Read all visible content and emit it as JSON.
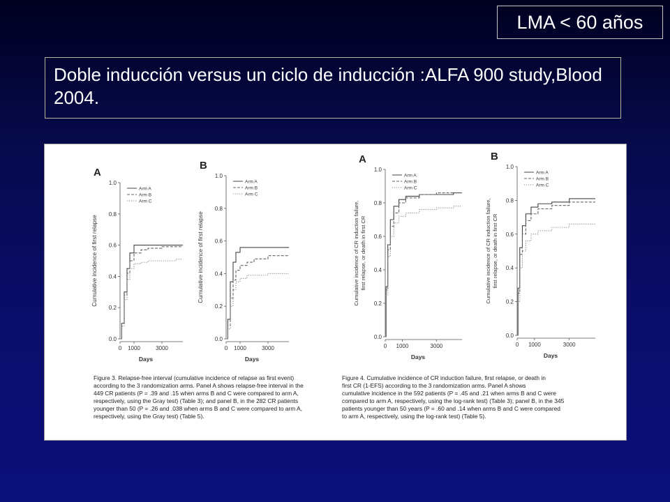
{
  "header": {
    "tag": "LMA < 60 años",
    "title": "Doble inducción versus un ciclo de inducción :ALFA 900 study,Blood 2004."
  },
  "figure3": {
    "caption_lines": [
      "Figure 3. Relapse-free interval (cumulative incidence of relapse as first event)",
      "according to the 3 randomization arms. Panel A shows relapse-free interval in the",
      "449 CR patients (P = .39 and .15 when arms B and C were compared to arm A,",
      "respectively, using the Gray test) (Table 3); and panel B, in the 282 CR patients",
      "younger than 50 (P = .26 and .038 when arms B and C were compared to arm A,",
      "respectively, using the Gray test) (Table 5)."
    ]
  },
  "figure4": {
    "caption_lines": [
      "Figure 4. Cumulative incidence of CR induction failure, first relapse, or death in",
      "first CR (1-EFS) according to the 3 randomization arms. Panel A shows",
      "cumulative incidence in the 592 patients (P = .45 and .21 when arms B and C were",
      "compared to arm A, respectively, using the log-rank test) (Table 3); panel B, in the 345",
      "patients younger than 50 years (P = .60 and .14 when arms B and C were compared",
      "to arm A, respectively, using the log-rank test) (Table 5)."
    ]
  },
  "chart_data": [
    {
      "type": "line",
      "panel_label": "A",
      "ylabel": "Cumulative incidence of first relapse",
      "xlabel": "Days",
      "xlim": [
        0,
        4500
      ],
      "ylim": [
        0,
        1.0
      ],
      "xticks": [
        0,
        1000,
        3000
      ],
      "yticks": [
        0.0,
        0.2,
        0.4,
        0.6,
        0.8,
        1.0
      ],
      "ytick_labels": [
        "0.0",
        "0.2",
        "0.4",
        "0.6",
        "0.8",
        "1.0"
      ],
      "series": [
        {
          "name": "Arm A",
          "style": "solid",
          "x": [
            0,
            120,
            300,
            500,
            700,
            1000,
            1500,
            2000,
            3000,
            4000
          ],
          "y": [
            0,
            0.1,
            0.3,
            0.45,
            0.55,
            0.6,
            0.6,
            0.6,
            0.6,
            0.6
          ]
        },
        {
          "name": "Arm B",
          "style": "dashed",
          "x": [
            0,
            120,
            300,
            500,
            700,
            1000,
            1500,
            2000,
            3000,
            4000
          ],
          "y": [
            0,
            0.1,
            0.28,
            0.42,
            0.5,
            0.55,
            0.57,
            0.58,
            0.59,
            0.59
          ]
        },
        {
          "name": "Arm C",
          "style": "dotted",
          "x": [
            0,
            120,
            300,
            500,
            700,
            1000,
            1500,
            2000,
            3000,
            4000
          ],
          "y": [
            0,
            0.08,
            0.25,
            0.38,
            0.45,
            0.48,
            0.49,
            0.5,
            0.5,
            0.51
          ]
        }
      ]
    },
    {
      "type": "line",
      "panel_label": "B",
      "ylabel": "Cumulative incidence of first relapse",
      "xlabel": "Days",
      "xlim": [
        0,
        4500
      ],
      "ylim": [
        0,
        1.0
      ],
      "xticks": [
        0,
        1000,
        3000
      ],
      "yticks": [
        0.0,
        0.2,
        0.4,
        0.6,
        0.8,
        1.0
      ],
      "ytick_labels": [
        "0.0",
        "0.2",
        "0.4",
        "0.6",
        "0.8",
        "1.0"
      ],
      "series": [
        {
          "name": "Arm A",
          "style": "solid",
          "x": [
            0,
            120,
            300,
            500,
            700,
            1000,
            1500,
            2000,
            3000,
            4000
          ],
          "y": [
            0,
            0.12,
            0.35,
            0.47,
            0.53,
            0.56,
            0.56,
            0.56,
            0.56,
            0.56
          ]
        },
        {
          "name": "Arm B",
          "style": "dashed",
          "x": [
            0,
            120,
            300,
            500,
            700,
            1000,
            1500,
            2000,
            3000,
            4000
          ],
          "y": [
            0,
            0.08,
            0.25,
            0.36,
            0.42,
            0.45,
            0.47,
            0.49,
            0.51,
            0.51
          ]
        },
        {
          "name": "Arm C",
          "style": "dotted",
          "x": [
            0,
            120,
            300,
            500,
            700,
            1000,
            1500,
            2000,
            3000,
            4000
          ],
          "y": [
            0,
            0.06,
            0.2,
            0.3,
            0.35,
            0.37,
            0.39,
            0.39,
            0.4,
            0.4
          ]
        }
      ]
    },
    {
      "type": "line",
      "panel_label": "A",
      "ylabel": "Cumulative incidence of CR induction failure, first relapse, or death in first CR",
      "xlabel": "Days",
      "xlim": [
        0,
        4500
      ],
      "ylim": [
        0,
        1.0
      ],
      "xticks": [
        0,
        1000,
        3000
      ],
      "yticks": [
        0.0,
        0.2,
        0.4,
        0.6,
        0.8,
        1.0
      ],
      "ytick_labels": [
        "0.0",
        "0.2",
        "0.4",
        "0.6",
        "0.8",
        "1.0"
      ],
      "series": [
        {
          "name": "Arm A",
          "style": "solid",
          "x": [
            0,
            50,
            150,
            300,
            500,
            800,
            1200,
            2000,
            3000,
            4000
          ],
          "y": [
            0,
            0.3,
            0.55,
            0.7,
            0.78,
            0.82,
            0.84,
            0.85,
            0.85,
            0.86
          ]
        },
        {
          "name": "Arm B",
          "style": "dashed",
          "x": [
            0,
            50,
            150,
            300,
            500,
            800,
            1200,
            2000,
            3000,
            4000
          ],
          "y": [
            0,
            0.28,
            0.52,
            0.66,
            0.74,
            0.8,
            0.83,
            0.85,
            0.86,
            0.86
          ]
        },
        {
          "name": "Arm C",
          "style": "dotted",
          "x": [
            0,
            50,
            150,
            300,
            500,
            800,
            1200,
            2000,
            3000,
            4000
          ],
          "y": [
            0,
            0.25,
            0.48,
            0.6,
            0.68,
            0.72,
            0.74,
            0.76,
            0.77,
            0.78
          ]
        }
      ]
    },
    {
      "type": "line",
      "panel_label": "B",
      "ylabel": "Cumulative incidence of CR induction failure, first relapse, or death in first CR",
      "xlabel": "Days",
      "xlim": [
        0,
        4500
      ],
      "ylim": [
        0,
        1.0
      ],
      "xticks": [
        0,
        1000,
        3000
      ],
      "yticks": [
        0.0,
        0.2,
        0.4,
        0.6,
        0.8,
        1.0
      ],
      "ytick_labels": [
        "0.0",
        "0.2",
        "0.4",
        "0.6",
        "0.8",
        "1.0"
      ],
      "series": [
        {
          "name": "Arm A",
          "style": "solid",
          "x": [
            0,
            50,
            150,
            300,
            500,
            800,
            1200,
            2000,
            3000,
            4000
          ],
          "y": [
            0,
            0.28,
            0.52,
            0.65,
            0.72,
            0.76,
            0.78,
            0.79,
            0.81,
            0.81
          ]
        },
        {
          "name": "Arm B",
          "style": "dashed",
          "x": [
            0,
            50,
            150,
            300,
            500,
            800,
            1200,
            2000,
            3000,
            4000
          ],
          "y": [
            0,
            0.25,
            0.48,
            0.6,
            0.68,
            0.72,
            0.75,
            0.77,
            0.79,
            0.79
          ]
        },
        {
          "name": "Arm C",
          "style": "dotted",
          "x": [
            0,
            50,
            150,
            300,
            500,
            800,
            1200,
            2000,
            3000,
            4000
          ],
          "y": [
            0,
            0.2,
            0.4,
            0.5,
            0.56,
            0.6,
            0.62,
            0.64,
            0.66,
            0.66
          ]
        }
      ]
    }
  ]
}
